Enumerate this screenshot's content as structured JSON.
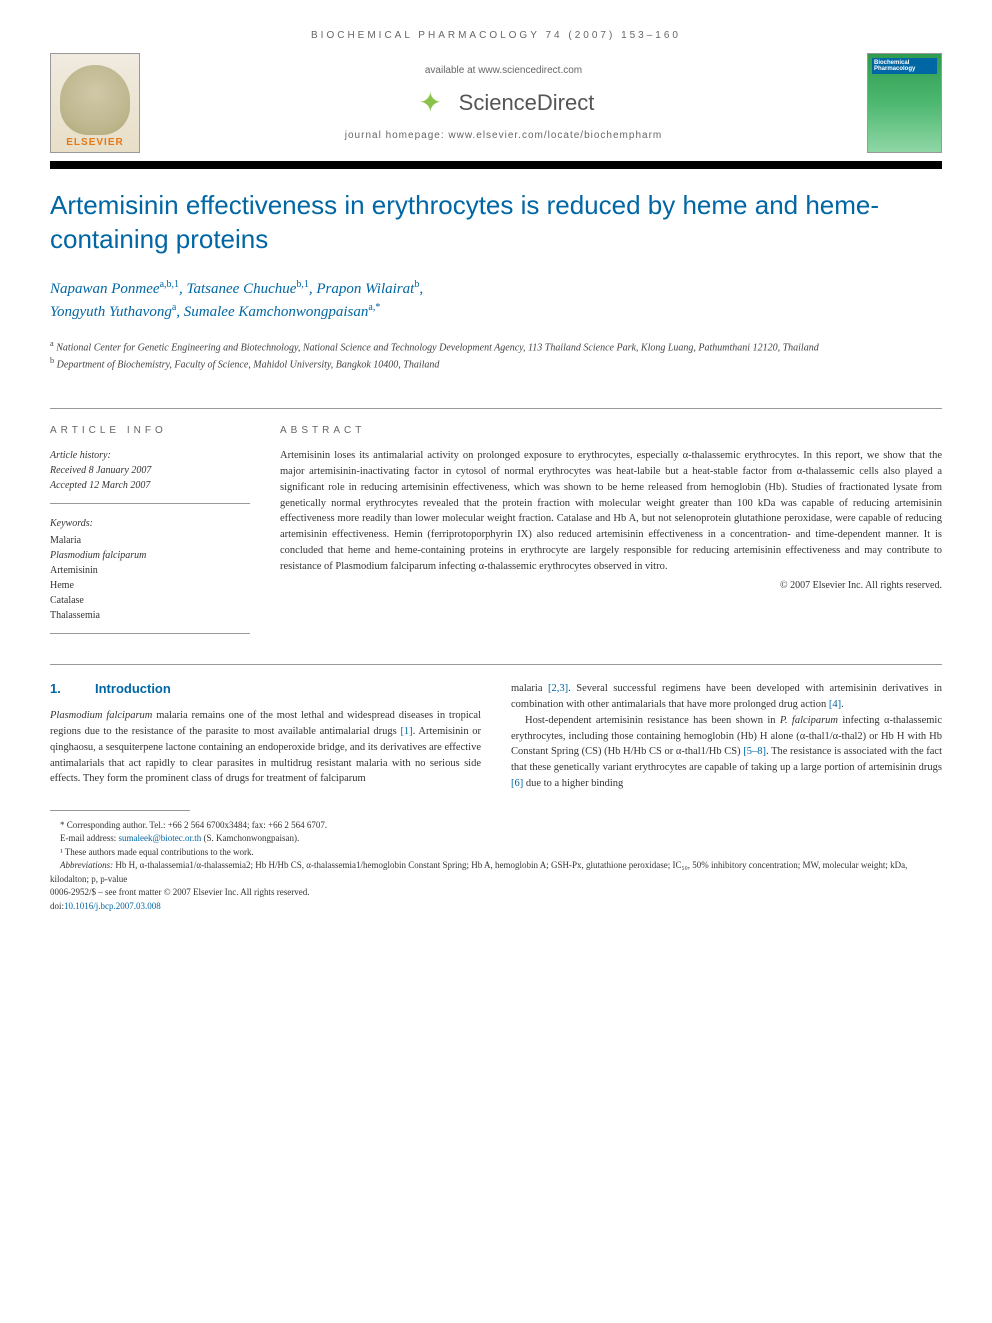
{
  "running_head": "BIOCHEMICAL PHARMACOLOGY 74 (2007) 153–160",
  "header": {
    "available_text": "available at www.sciencedirect.com",
    "sciencedirect": "ScienceDirect",
    "homepage": "journal homepage: www.elsevier.com/locate/biochempharm",
    "elsevier": "ELSEVIER",
    "cover_title": "Biochemical Pharmacology"
  },
  "title": "Artemisinin effectiveness in erythrocytes is reduced by heme and heme-containing proteins",
  "authors": [
    {
      "name": "Napawan Ponmee",
      "affil": "a,b,1"
    },
    {
      "name": "Tatsanee Chuchue",
      "affil": "b,1"
    },
    {
      "name": "Prapon Wilairat",
      "affil": "b"
    },
    {
      "name": "Yongyuth Yuthavong",
      "affil": "a"
    },
    {
      "name": "Sumalee Kamchonwongpaisan",
      "affil": "a,*"
    }
  ],
  "affiliations": {
    "a": "National Center for Genetic Engineering and Biotechnology, National Science and Technology Development Agency, 113 Thailand Science Park, Klong Luang, Pathumthani 12120, Thailand",
    "b": "Department of Biochemistry, Faculty of Science, Mahidol University, Bangkok 10400, Thailand"
  },
  "article_info": {
    "header": "ARTICLE INFO",
    "history_label": "Article history:",
    "received": "Received 8 January 2007",
    "accepted": "Accepted 12 March 2007",
    "keywords_label": "Keywords:",
    "keywords": [
      "Malaria",
      "Plasmodium falciparum",
      "Artemisinin",
      "Heme",
      "Catalase",
      "Thalassemia"
    ]
  },
  "abstract": {
    "header": "ABSTRACT",
    "text": "Artemisinin loses its antimalarial activity on prolonged exposure to erythrocytes, especially α-thalassemic erythrocytes. In this report, we show that the major artemisinin-inactivating factor in cytosol of normal erythrocytes was heat-labile but a heat-stable factor from α-thalassemic cells also played a significant role in reducing artemisinin effectiveness, which was shown to be heme released from hemoglobin (Hb). Studies of fractionated lysate from genetically normal erythrocytes revealed that the protein fraction with molecular weight greater than 100 kDa was capable of reducing artemisinin effectiveness more readily than lower molecular weight fraction. Catalase and Hb A, but not selenoprotein glutathione peroxidase, were capable of reducing artemisinin effectiveness. Hemin (ferriprotoporphyrin IX) also reduced artemisinin effectiveness in a concentration- and time-dependent manner. It is concluded that heme and heme-containing proteins in erythrocyte are largely responsible for reducing artemisinin effectiveness and may contribute to resistance of Plasmodium falciparum infecting α-thalassemic erythrocytes observed in vitro.",
    "copyright": "© 2007 Elsevier Inc. All rights reserved."
  },
  "section1": {
    "num": "1.",
    "title": "Introduction"
  },
  "body": {
    "col1_p1": "Plasmodium falciparum malaria remains one of the most lethal and widespread diseases in tropical regions due to the resistance of the parasite to most available antimalarial drugs [1]. Artemisinin or qinghaosu, a sesquiterpene lactone containing an endoperoxide bridge, and its derivatives are effective antimalarials that act rapidly to clear parasites in multidrug resistant malaria with no serious side effects. They form the prominent class of drugs for treatment of falciparum",
    "col2_p1": "malaria [2,3]. Several successful regimens have been developed with artemisinin derivatives in combination with other antimalarials that have more prolonged drug action [4].",
    "col2_p2": "Host-dependent artemisinin resistance has been shown in P. falciparum infecting α-thalassemic erythrocytes, including those containing hemoglobin (Hb) H alone (α-thal1/α-thal2) or Hb H with Hb Constant Spring (CS) (Hb H/Hb CS or α-thal1/Hb CS) [5–8]. The resistance is associated with the fact that these genetically variant erythrocytes are capable of taking up a large portion of artemisinin drugs [6] due to a higher binding"
  },
  "footnotes": {
    "corresponding": "* Corresponding author. Tel.: +66 2 564 6700x3484; fax: +66 2 564 6707.",
    "email_label": "E-mail address:",
    "email": "sumaleek@biotec.or.th",
    "email_name": "(S. Kamchonwongpaisan).",
    "equal": "¹ These authors made equal contributions to the work.",
    "abbrev_label": "Abbreviations:",
    "abbrev": "Hb H, α-thalassemia1/α-thalassemia2; Hb H/Hb CS, α-thalassemia1/hemoglobin Constant Spring; Hb A, hemoglobin A; GSH-Px, glutathione peroxidase; IC₅₀, 50% inhibitory concentration; MW, molecular weight; kDa, kilodalton; p, p-value",
    "issn": "0006-2952/$ – see front matter © 2007 Elsevier Inc. All rights reserved.",
    "doi_label": "doi:",
    "doi": "10.1016/j.bcp.2007.03.008"
  },
  "colors": {
    "link_blue": "#0066a4",
    "orange": "#e67817",
    "green": "#8bc34a"
  }
}
